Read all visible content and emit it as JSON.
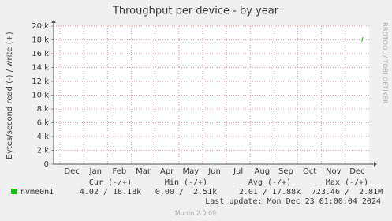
{
  "chart_data": {
    "type": "line",
    "title": "Throughput per device - by year",
    "y_label": "Bytes/second read (-) / write (+)",
    "watermark": "RRDTOOL / TOBI OETIKER",
    "categories": [
      "Dec",
      "Jan",
      "Feb",
      "Mar",
      "Apr",
      "May",
      "Jun",
      "Jul",
      "Aug",
      "Sep",
      "Oct",
      "Nov",
      "Dec"
    ],
    "series": [
      {
        "name": "nvme0n1",
        "color": "#00cc00",
        "values": [
          null,
          null,
          null,
          null,
          null,
          null,
          null,
          null,
          null,
          null,
          null,
          null,
          18180
        ],
        "stats": [
          "4.02 / 18.18k",
          "0.00 /  2.51k",
          "2.01 / 17.88k",
          "723.46 /  2.81M"
        ]
      }
    ],
    "legend_columns": [
      "Cur (-/+)",
      "Min (-/+)",
      "Avg (-/+)",
      "Max (-/+)"
    ],
    "ylim": [
      0,
      20000
    ],
    "yticks": [
      0,
      {
        "value": 2000,
        "label": "2 k"
      },
      {
        "value": 4000,
        "label": "4 k"
      },
      {
        "value": 6000,
        "label": "6 k"
      },
      {
        "value": 8000,
        "label": "8 k"
      },
      {
        "value": 10000,
        "label": "10 k"
      },
      {
        "value": 12000,
        "label": "12 k"
      },
      {
        "value": 14000,
        "label": "14 k"
      },
      {
        "value": 16000,
        "label": "16 k"
      },
      {
        "value": 18000,
        "label": "18 k"
      },
      {
        "value": 20000,
        "label": "20 k"
      }
    ],
    "grid": true,
    "last_update": "Last update: Mon Dec 23 01:00:04 2024",
    "footer": "Munin 2.0.69"
  }
}
